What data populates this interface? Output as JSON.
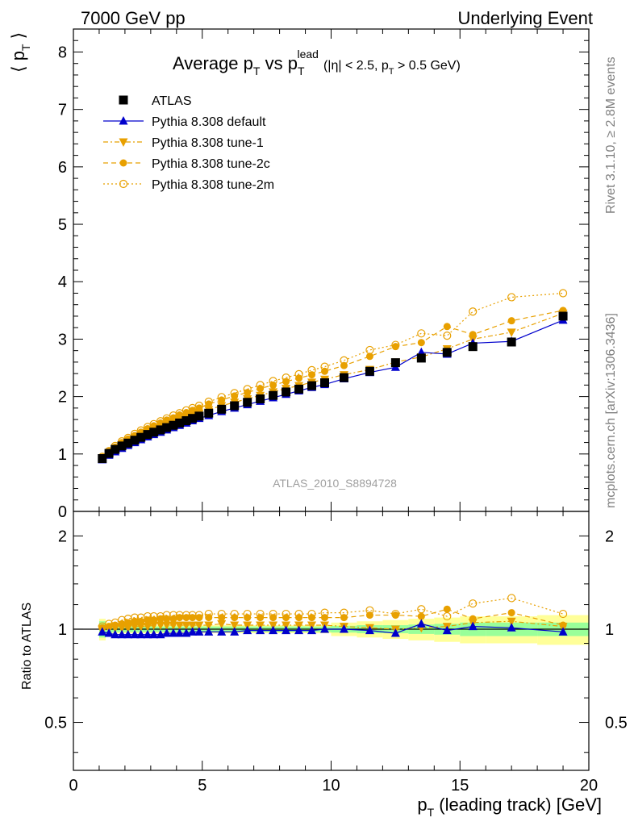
{
  "header": {
    "left": "7000 GeV pp",
    "right": "Underlying Event"
  },
  "title": {
    "main_a": "Average p",
    "main_a_sub": "T",
    "main_b": " vs p",
    "main_b_sub": "T",
    "main_b_sup": "lead",
    "cuts_a": "(|η| < 2.5, p",
    "cuts_sub": "T",
    "cuts_b": " > 0.5 GeV)"
  },
  "side_labels": {
    "rivet": "Rivet 3.1.10, ≥ 2.8M events",
    "mcplots": "mcplots.cern.ch [arXiv:1306.3436]"
  },
  "watermark": "ATLAS_2010_S8894728",
  "axes": {
    "ylabel_main": "⟨ p",
    "ylabel_main_sub": "T",
    "ylabel_main_end": " ⟩",
    "ylabel_ratio": "Ratio to ATLAS",
    "xlabel": "p",
    "xlabel_sub": "T",
    "xlabel_rest": " (leading track) [GeV]"
  },
  "colors": {
    "data": "#000000",
    "default": "#0000cc",
    "tune": "#e8a000",
    "band_inner": "#99ff99",
    "band_outer": "#ffff99"
  },
  "chart_data": [
    {
      "type": "scatter",
      "panel": "main",
      "xlim": [
        0,
        20
      ],
      "ylim": [
        0,
        8.4
      ],
      "yticks": [
        0,
        1,
        2,
        3,
        4,
        5,
        6,
        7,
        8
      ],
      "x": [
        1.12,
        1.38,
        1.62,
        1.88,
        2.12,
        2.38,
        2.62,
        2.88,
        3.12,
        3.38,
        3.62,
        3.88,
        4.12,
        4.38,
        4.62,
        4.88,
        5.25,
        5.75,
        6.25,
        6.75,
        7.25,
        7.75,
        8.25,
        8.75,
        9.25,
        9.75,
        10.5,
        11.5,
        12.5,
        13.5,
        14.5,
        15.5,
        17.0,
        19.0
      ],
      "series": [
        {
          "name": "ATLAS",
          "key": "data",
          "values": [
            0.92,
            1.01,
            1.08,
            1.14,
            1.19,
            1.24,
            1.29,
            1.34,
            1.38,
            1.42,
            1.46,
            1.5,
            1.54,
            1.58,
            1.62,
            1.66,
            1.71,
            1.78,
            1.84,
            1.9,
            1.96,
            2.02,
            2.08,
            2.13,
            2.19,
            2.24,
            2.33,
            2.44,
            2.59,
            2.67,
            2.77,
            2.87,
            2.95,
            3.4
          ]
        },
        {
          "name": "Pythia 8.308 default",
          "key": "default",
          "values": [
            0.9,
            0.98,
            1.04,
            1.1,
            1.15,
            1.2,
            1.25,
            1.3,
            1.34,
            1.38,
            1.42,
            1.46,
            1.5,
            1.54,
            1.58,
            1.62,
            1.67,
            1.74,
            1.8,
            1.86,
            1.92,
            1.98,
            2.04,
            2.1,
            2.16,
            2.21,
            2.31,
            2.42,
            2.51,
            2.77,
            2.74,
            2.93,
            2.96,
            3.33
          ]
        },
        {
          "name": "Pythia 8.308 tune-1",
          "key": "tune1",
          "values": [
            0.93,
            1.02,
            1.09,
            1.16,
            1.21,
            1.27,
            1.32,
            1.37,
            1.42,
            1.46,
            1.5,
            1.54,
            1.59,
            1.63,
            1.67,
            1.71,
            1.77,
            1.84,
            1.9,
            1.96,
            2.02,
            2.08,
            2.14,
            2.19,
            2.25,
            2.3,
            2.38,
            2.47,
            2.6,
            2.69,
            2.83,
            3.0,
            3.12,
            3.45
          ]
        },
        {
          "name": "Pythia 8.308 tune-2c",
          "key": "tune2c",
          "values": [
            0.94,
            1.04,
            1.12,
            1.2,
            1.26,
            1.32,
            1.38,
            1.44,
            1.49,
            1.54,
            1.59,
            1.63,
            1.68,
            1.72,
            1.76,
            1.8,
            1.87,
            1.94,
            2.01,
            2.07,
            2.14,
            2.2,
            2.26,
            2.32,
            2.38,
            2.44,
            2.54,
            2.7,
            2.87,
            2.94,
            3.22,
            3.08,
            3.32,
            3.5
          ]
        },
        {
          "name": "Pythia 8.308 tune-2m",
          "key": "tune2m",
          "values": [
            0.95,
            1.05,
            1.14,
            1.22,
            1.28,
            1.35,
            1.41,
            1.47,
            1.52,
            1.57,
            1.62,
            1.67,
            1.71,
            1.76,
            1.8,
            1.84,
            1.91,
            1.99,
            2.06,
            2.13,
            2.2,
            2.27,
            2.33,
            2.39,
            2.46,
            2.52,
            2.63,
            2.81,
            2.9,
            3.1,
            3.06,
            3.48,
            3.73,
            3.8
          ]
        }
      ]
    },
    {
      "type": "scatter",
      "panel": "ratio",
      "xlim": [
        0,
        20
      ],
      "ylim": [
        0.35,
        2.4
      ],
      "log_y": true,
      "yticks": [
        0.5,
        1,
        2
      ],
      "x": [
        1.12,
        1.38,
        1.62,
        1.88,
        2.12,
        2.38,
        2.62,
        2.88,
        3.12,
        3.38,
        3.62,
        3.88,
        4.12,
        4.38,
        4.62,
        4.88,
        5.25,
        5.75,
        6.25,
        6.75,
        7.25,
        7.75,
        8.25,
        8.75,
        9.25,
        9.75,
        10.5,
        11.5,
        12.5,
        13.5,
        14.5,
        15.5,
        17.0,
        19.0
      ],
      "series": [
        {
          "name": "Pythia 8.308 default",
          "key": "default",
          "values": [
            0.98,
            0.97,
            0.96,
            0.96,
            0.96,
            0.96,
            0.96,
            0.96,
            0.96,
            0.96,
            0.97,
            0.97,
            0.97,
            0.97,
            0.98,
            0.98,
            0.98,
            0.98,
            0.98,
            0.99,
            0.99,
            0.99,
            0.99,
            0.99,
            0.99,
            1.0,
            1.0,
            0.99,
            0.97,
            1.04,
            0.99,
            1.02,
            1.01,
            0.98
          ]
        },
        {
          "name": "Pythia 8.308 tune-1",
          "key": "tune1",
          "values": [
            1.0,
            1.01,
            1.01,
            1.01,
            1.01,
            1.02,
            1.02,
            1.02,
            1.03,
            1.03,
            1.03,
            1.03,
            1.03,
            1.03,
            1.03,
            1.03,
            1.03,
            1.04,
            1.03,
            1.03,
            1.03,
            1.03,
            1.03,
            1.03,
            1.03,
            1.03,
            1.02,
            1.01,
            1.0,
            1.01,
            1.02,
            1.05,
            1.06,
            1.02
          ]
        },
        {
          "name": "Pythia 8.308 tune-2c",
          "key": "tune2c",
          "values": [
            1.01,
            1.02,
            1.03,
            1.04,
            1.05,
            1.06,
            1.06,
            1.07,
            1.07,
            1.08,
            1.08,
            1.08,
            1.09,
            1.09,
            1.09,
            1.09,
            1.09,
            1.09,
            1.09,
            1.09,
            1.09,
            1.09,
            1.09,
            1.09,
            1.09,
            1.09,
            1.09,
            1.11,
            1.11,
            1.1,
            1.16,
            1.08,
            1.13,
            1.03
          ]
        },
        {
          "name": "Pythia 8.308 tune-2m",
          "key": "tune2m",
          "values": [
            1.02,
            1.04,
            1.05,
            1.07,
            1.08,
            1.09,
            1.09,
            1.1,
            1.1,
            1.1,
            1.11,
            1.11,
            1.11,
            1.11,
            1.11,
            1.11,
            1.12,
            1.12,
            1.12,
            1.12,
            1.12,
            1.12,
            1.12,
            1.12,
            1.12,
            1.13,
            1.13,
            1.15,
            1.12,
            1.16,
            1.1,
            1.21,
            1.26,
            1.12
          ]
        }
      ],
      "band_inner": {
        "x_edges": [
          1.0,
          1.25,
          1.5,
          10.0,
          11.0,
          12.0,
          13.0,
          14.0,
          15.0,
          16.0,
          18.0,
          20.0
        ],
        "half_width": [
          0.06,
          0.03,
          0.02,
          0.025,
          0.03,
          0.03,
          0.035,
          0.04,
          0.05,
          0.05,
          0.05
        ]
      },
      "band_outer": {
        "x_edges": [
          1.0,
          1.25,
          1.5,
          10.0,
          11.0,
          12.0,
          13.0,
          14.0,
          15.0,
          16.0,
          18.0,
          20.0
        ],
        "half_width": [
          0.08,
          0.05,
          0.03,
          0.05,
          0.06,
          0.07,
          0.08,
          0.09,
          0.1,
          0.1,
          0.11
        ]
      }
    }
  ],
  "xticks": [
    0,
    5,
    10,
    15,
    20
  ]
}
